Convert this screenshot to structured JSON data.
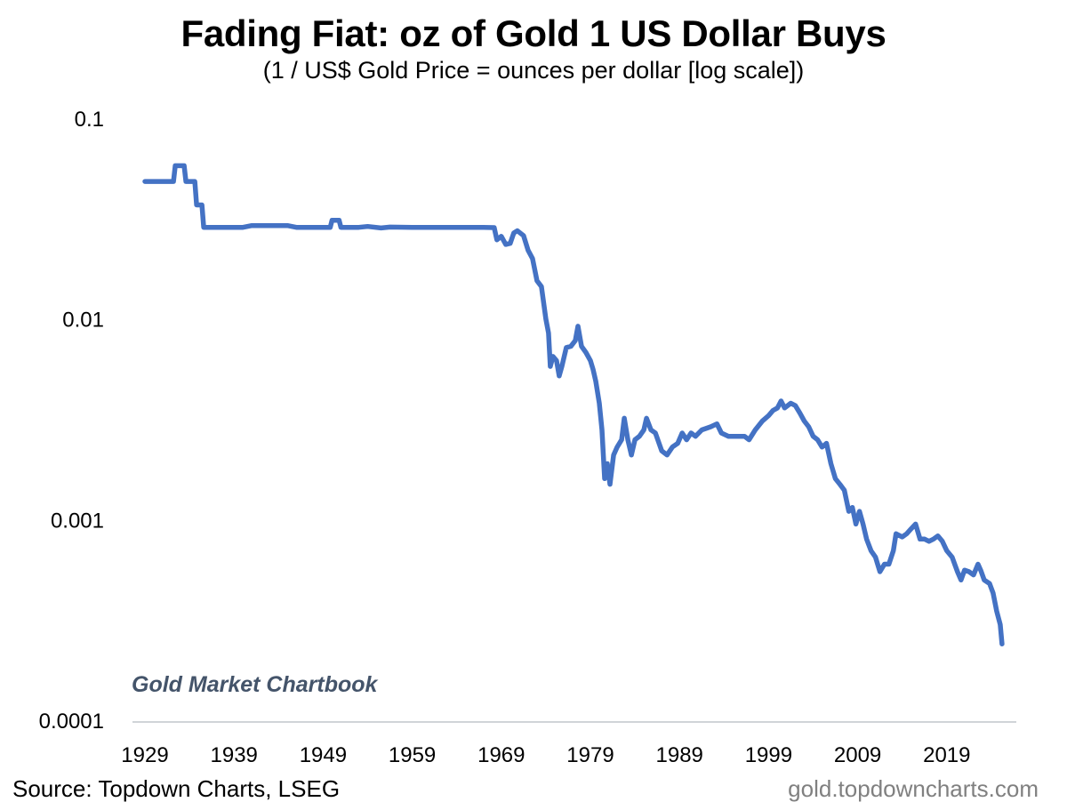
{
  "chart_data": {
    "type": "line",
    "title": "Fading Fiat: oz of Gold 1 US Dollar Buys",
    "subtitle": "(1 / US$ Gold Price = ounces per dollar [log scale])",
    "xlabel": "",
    "ylabel": "",
    "yscale": "log",
    "ylim": [
      0.0001,
      0.1
    ],
    "xlim": [
      1929,
      2025
    ],
    "yticks": [
      "0.1",
      "0.01",
      "0.001",
      "0.0001"
    ],
    "ytick_values": [
      0.1,
      0.01,
      0.001,
      0.0001
    ],
    "xticks": [
      "1929",
      "1939",
      "1949",
      "1959",
      "1969",
      "1979",
      "1989",
      "1999",
      "2009",
      "2019"
    ],
    "xtick_values": [
      1929,
      1939,
      1949,
      1959,
      1969,
      1979,
      1989,
      1999,
      2009,
      2019
    ],
    "grid": false,
    "legend": "none",
    "annotation": "Gold Market Chartbook",
    "series": [
      {
        "name": "oz of Gold per US Dollar",
        "color": "#4472c4",
        "points": [
          [
            1929.0,
            0.0484
          ],
          [
            1932.2,
            0.0484
          ],
          [
            1932.4,
            0.058
          ],
          [
            1933.4,
            0.058
          ],
          [
            1933.6,
            0.0484
          ],
          [
            1934.6,
            0.0484
          ],
          [
            1934.8,
            0.037
          ],
          [
            1935.4,
            0.037
          ],
          [
            1935.6,
            0.0286
          ],
          [
            1940.0,
            0.0286
          ],
          [
            1941.0,
            0.0292
          ],
          [
            1945.0,
            0.0292
          ],
          [
            1946.0,
            0.0286
          ],
          [
            1949.8,
            0.0286
          ],
          [
            1950.0,
            0.031
          ],
          [
            1950.8,
            0.031
          ],
          [
            1951.0,
            0.0286
          ],
          [
            1953.0,
            0.0286
          ],
          [
            1954.0,
            0.0289
          ],
          [
            1955.5,
            0.0284
          ],
          [
            1956.5,
            0.0287
          ],
          [
            1959.0,
            0.0286
          ],
          [
            1967.0,
            0.0286
          ],
          [
            1968.2,
            0.0285
          ],
          [
            1968.5,
            0.0248
          ],
          [
            1969.0,
            0.0258
          ],
          [
            1969.5,
            0.0235
          ],
          [
            1970.0,
            0.0238
          ],
          [
            1970.4,
            0.0268
          ],
          [
            1970.8,
            0.0275
          ],
          [
            1971.5,
            0.026
          ],
          [
            1972.0,
            0.022
          ],
          [
            1972.5,
            0.02
          ],
          [
            1973.0,
            0.0155
          ],
          [
            1973.5,
            0.0145
          ],
          [
            1974.0,
            0.01
          ],
          [
            1974.3,
            0.0085
          ],
          [
            1974.5,
            0.0058
          ],
          [
            1974.8,
            0.0065
          ],
          [
            1975.2,
            0.0062
          ],
          [
            1975.5,
            0.0052
          ],
          [
            1975.8,
            0.0058
          ],
          [
            1976.3,
            0.0072
          ],
          [
            1976.8,
            0.0073
          ],
          [
            1977.3,
            0.0078
          ],
          [
            1977.6,
            0.0092
          ],
          [
            1978.0,
            0.0073
          ],
          [
            1978.5,
            0.0068
          ],
          [
            1979.0,
            0.0062
          ],
          [
            1979.3,
            0.0056
          ],
          [
            1979.6,
            0.0049
          ],
          [
            1980.0,
            0.0038
          ],
          [
            1980.3,
            0.0028
          ],
          [
            1980.6,
            0.0016
          ],
          [
            1980.9,
            0.0019
          ],
          [
            1981.2,
            0.0015
          ],
          [
            1981.6,
            0.0021
          ],
          [
            1982.0,
            0.0023
          ],
          [
            1982.5,
            0.0025
          ],
          [
            1982.8,
            0.0032
          ],
          [
            1983.2,
            0.0025
          ],
          [
            1983.6,
            0.0021
          ],
          [
            1984.0,
            0.0025
          ],
          [
            1984.5,
            0.0026
          ],
          [
            1985.0,
            0.0028
          ],
          [
            1985.3,
            0.0032
          ],
          [
            1985.8,
            0.0028
          ],
          [
            1986.3,
            0.0027
          ],
          [
            1987.0,
            0.0022
          ],
          [
            1987.6,
            0.0021
          ],
          [
            1988.2,
            0.0023
          ],
          [
            1988.8,
            0.0024
          ],
          [
            1989.3,
            0.0027
          ],
          [
            1989.8,
            0.0025
          ],
          [
            1990.3,
            0.0027
          ],
          [
            1990.8,
            0.0026
          ],
          [
            1991.5,
            0.0028
          ],
          [
            1992.5,
            0.0029
          ],
          [
            1993.2,
            0.003
          ],
          [
            1993.7,
            0.0027
          ],
          [
            1994.5,
            0.0026
          ],
          [
            1995.5,
            0.0026
          ],
          [
            1996.3,
            0.0026
          ],
          [
            1996.8,
            0.0025
          ],
          [
            1997.5,
            0.0028
          ],
          [
            1998.3,
            0.0031
          ],
          [
            1999.0,
            0.0033
          ],
          [
            1999.5,
            0.0035
          ],
          [
            2000.0,
            0.0036
          ],
          [
            2000.4,
            0.0039
          ],
          [
            2000.8,
            0.0036
          ],
          [
            2001.5,
            0.0038
          ],
          [
            2002.0,
            0.0037
          ],
          [
            2002.5,
            0.0034
          ],
          [
            2003.0,
            0.0031
          ],
          [
            2003.5,
            0.0029
          ],
          [
            2004.0,
            0.0026
          ],
          [
            2004.5,
            0.0025
          ],
          [
            2005.0,
            0.0023
          ],
          [
            2005.5,
            0.0024
          ],
          [
            2006.0,
            0.0019
          ],
          [
            2006.5,
            0.0016
          ],
          [
            2007.0,
            0.0015
          ],
          [
            2007.5,
            0.0014
          ],
          [
            2008.0,
            0.0011
          ],
          [
            2008.4,
            0.00115
          ],
          [
            2008.8,
            0.00095
          ],
          [
            2009.2,
            0.0011
          ],
          [
            2009.6,
            0.00095
          ],
          [
            2010.0,
            0.0008
          ],
          [
            2010.5,
            0.0007
          ],
          [
            2011.0,
            0.00065
          ],
          [
            2011.5,
            0.00055
          ],
          [
            2012.0,
            0.0006
          ],
          [
            2012.5,
            0.0006
          ],
          [
            2013.0,
            0.0007
          ],
          [
            2013.3,
            0.00085
          ],
          [
            2014.0,
            0.00082
          ],
          [
            2014.5,
            0.00085
          ],
          [
            2015.0,
            0.0009
          ],
          [
            2015.5,
            0.00095
          ],
          [
            2016.0,
            0.0008
          ],
          [
            2016.5,
            0.0008
          ],
          [
            2017.0,
            0.00078
          ],
          [
            2017.5,
            0.0008
          ],
          [
            2018.0,
            0.00083
          ],
          [
            2018.5,
            0.00078
          ],
          [
            2019.0,
            0.0007
          ],
          [
            2019.6,
            0.00065
          ],
          [
            2020.2,
            0.00055
          ],
          [
            2020.6,
            0.0005
          ],
          [
            2021.0,
            0.00056
          ],
          [
            2021.5,
            0.00055
          ],
          [
            2022.0,
            0.00053
          ],
          [
            2022.5,
            0.0006
          ],
          [
            2022.8,
            0.00056
          ],
          [
            2023.2,
            0.0005
          ],
          [
            2023.8,
            0.00048
          ],
          [
            2024.2,
            0.00043
          ],
          [
            2024.6,
            0.00035
          ],
          [
            2025.0,
            0.0003
          ],
          [
            2025.2,
            0.00024
          ]
        ]
      }
    ]
  },
  "footer": {
    "source": "Source: Topdown Charts, LSEG",
    "site": "gold.topdowncharts.com"
  }
}
